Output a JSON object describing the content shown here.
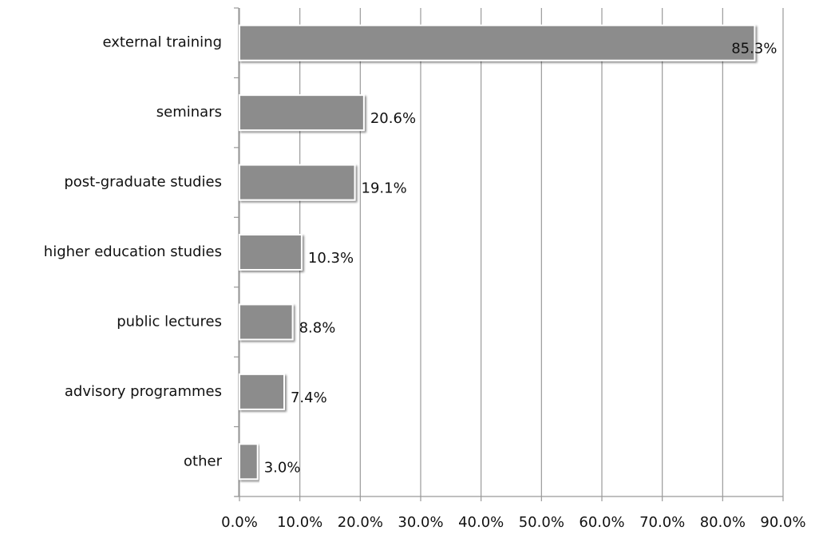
{
  "chart_data": {
    "type": "bar",
    "orientation": "horizontal",
    "categories": [
      "external training",
      "seminars",
      "post-graduate studies",
      "higher education studies",
      "public lectures",
      "advisory programmes",
      "other"
    ],
    "values": [
      85.3,
      20.6,
      19.1,
      10.3,
      8.8,
      7.4,
      3.0
    ],
    "value_labels": [
      "85.3%",
      "20.6%",
      "19.1%",
      "10.3%",
      "8.8%",
      "7.4%",
      "3.0%"
    ],
    "color": "#8c8c8c",
    "xlim": [
      0,
      90
    ],
    "xticks": [
      {
        "value": 0,
        "label": "0.0%"
      },
      {
        "value": 10,
        "label": "10.0%"
      },
      {
        "value": 20,
        "label": "20.0%"
      },
      {
        "value": 30,
        "label": "30.0%"
      },
      {
        "value": 40,
        "label": "40.0%"
      },
      {
        "value": 50,
        "label": "50.0%"
      },
      {
        "value": 60,
        "label": "60.0%"
      },
      {
        "value": 70,
        "label": "70.0%"
      },
      {
        "value": 80,
        "label": "80.0%"
      },
      {
        "value": 90,
        "label": "90.0%"
      }
    ],
    "grid": true
  }
}
